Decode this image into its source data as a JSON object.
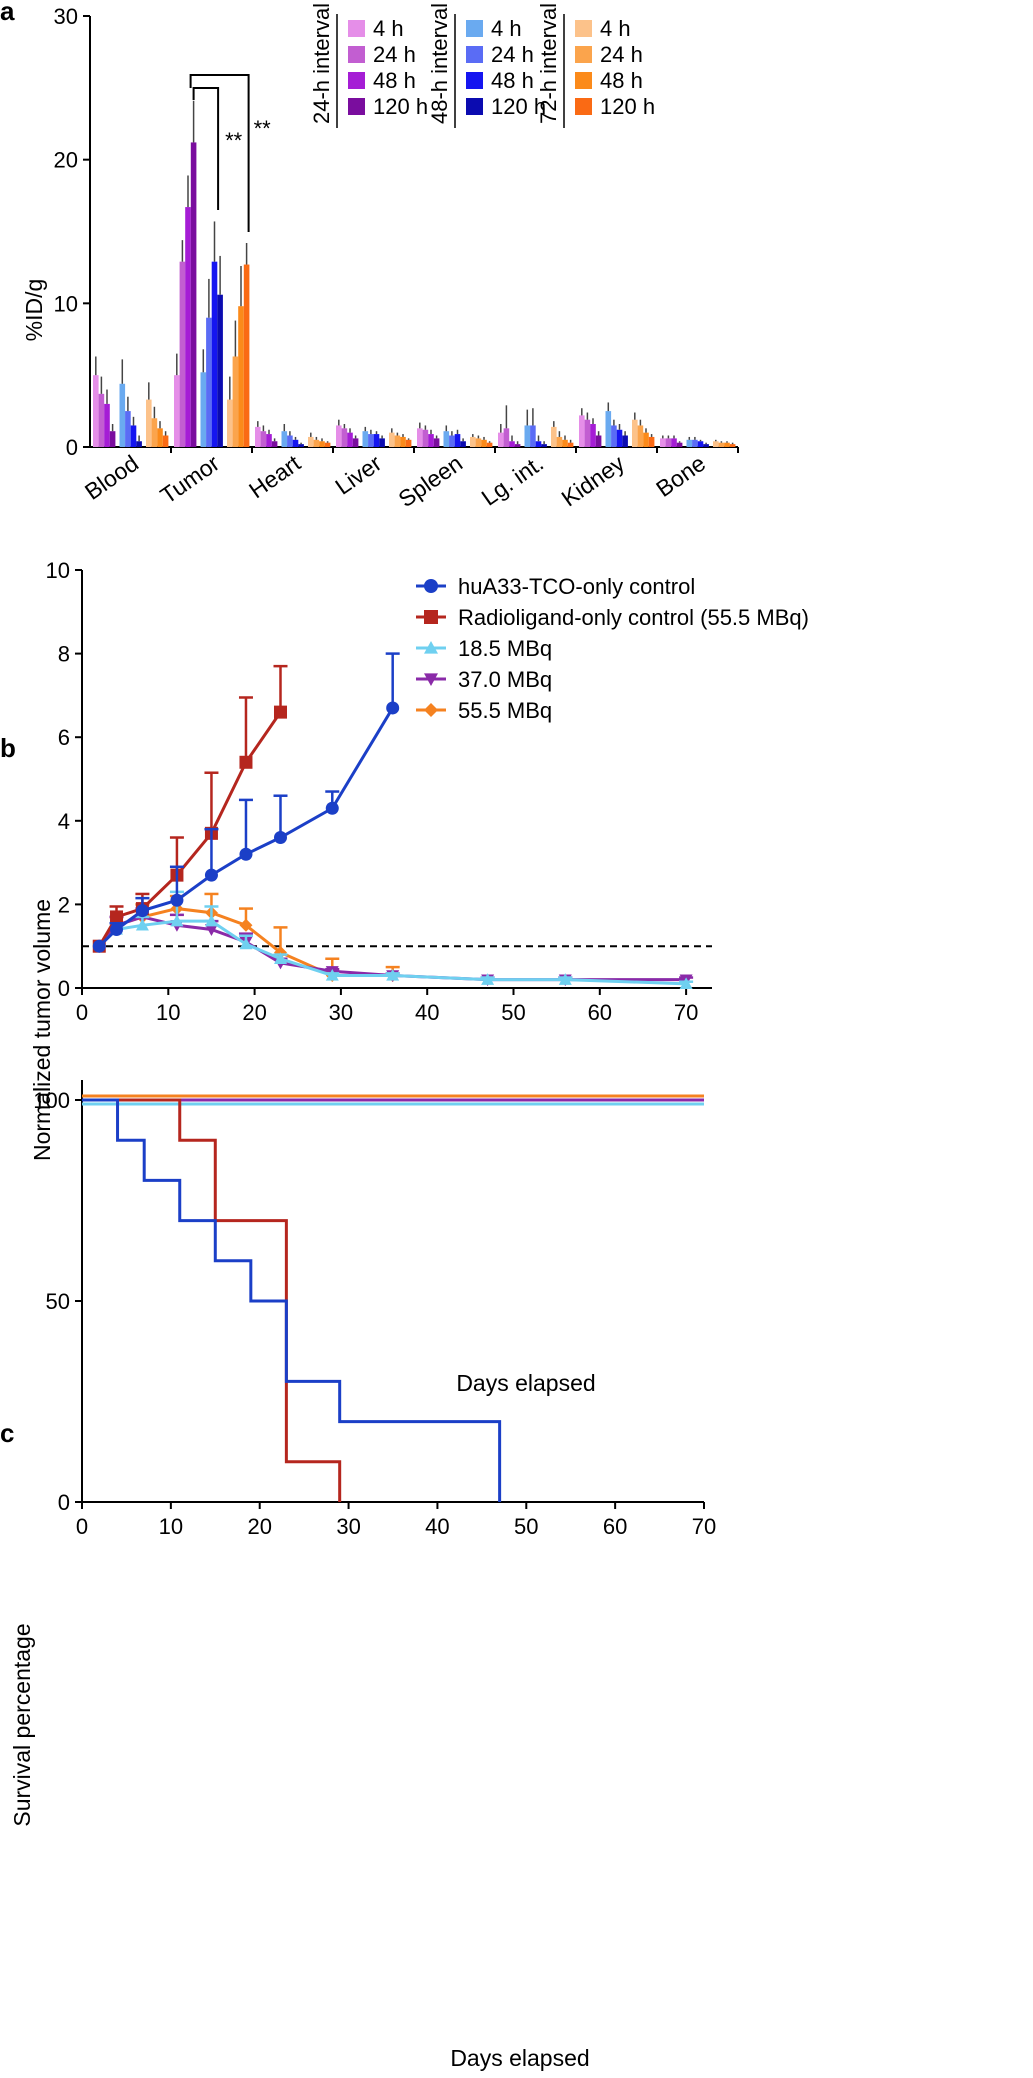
{
  "chart_data": [
    {
      "panel": "a",
      "type": "bar",
      "ylabel": "%ID/g",
      "ylim": [
        0,
        30
      ],
      "yticks": [
        0,
        10,
        20,
        30
      ],
      "categories": [
        "Blood",
        "Tumor",
        "Heart",
        "Liver",
        "Spleen",
        "Lg. int.",
        "Kidney",
        "Bone"
      ],
      "groups": [
        {
          "name": "24-h interval",
          "timepoints": [
            "4 h",
            "24 h",
            "48 h",
            "120 h"
          ],
          "colors": [
            "#e58ee8",
            "#c25ed1",
            "#a51dd5",
            "#7a0d9e"
          ]
        },
        {
          "name": "48-h interval",
          "timepoints": [
            "4 h",
            "24 h",
            "48 h",
            "120 h"
          ],
          "colors": [
            "#6aaaf0",
            "#5a6cf5",
            "#1515f0",
            "#0b0bb0"
          ]
        },
        {
          "name": "72-h interval",
          "timepoints": [
            "4 h",
            "24 h",
            "48 h",
            "120 h"
          ],
          "colors": [
            "#fcc28a",
            "#fba44c",
            "#fb8a1a",
            "#fa6a14"
          ]
        }
      ],
      "values": [
        [
          5.0,
          3.7,
          3.0,
          1.1,
          4.4,
          2.5,
          1.5,
          0.4,
          3.3,
          2.0,
          1.3,
          0.8
        ],
        [
          5.0,
          12.9,
          16.7,
          21.2,
          5.2,
          9.0,
          12.9,
          10.6,
          3.3,
          6.3,
          9.8,
          12.7
        ],
        [
          1.4,
          1.1,
          0.9,
          0.4,
          1.1,
          0.8,
          0.5,
          0.2,
          0.7,
          0.5,
          0.4,
          0.3
        ],
        [
          1.5,
          1.3,
          1.0,
          0.6,
          1.1,
          0.9,
          0.9,
          0.6,
          1.0,
          0.8,
          0.7,
          0.5
        ],
        [
          1.3,
          1.2,
          0.9,
          0.6,
          1.1,
          0.8,
          0.9,
          0.4,
          0.7,
          0.6,
          0.5,
          0.3
        ],
        [
          1.0,
          1.3,
          0.4,
          0.2,
          1.5,
          1.5,
          0.4,
          0.2,
          1.4,
          0.7,
          0.5,
          0.3
        ],
        [
          2.2,
          1.9,
          1.6,
          0.8,
          2.5,
          1.5,
          1.2,
          0.8,
          1.9,
          1.5,
          1.0,
          0.7
        ],
        [
          0.6,
          0.6,
          0.6,
          0.3,
          0.5,
          0.5,
          0.4,
          0.2,
          0.4,
          0.3,
          0.3,
          0.2
        ]
      ],
      "errors": [
        [
          1.3,
          1.2,
          1.0,
          0.5,
          1.7,
          1.0,
          0.6,
          0.4,
          1.2,
          0.8,
          0.5,
          0.3
        ],
        [
          1.5,
          1.5,
          2.2,
          2.9,
          1.6,
          2.7,
          2.8,
          2.7,
          1.6,
          2.5,
          2.8,
          1.5
        ],
        [
          0.4,
          0.4,
          0.3,
          0.2,
          0.5,
          0.3,
          0.2,
          0.1,
          0.3,
          0.2,
          0.2,
          0.1
        ],
        [
          0.4,
          0.3,
          0.3,
          0.2,
          0.3,
          0.3,
          0.2,
          0.2,
          0.3,
          0.2,
          0.2,
          0.1
        ],
        [
          0.4,
          0.3,
          0.3,
          0.2,
          0.4,
          0.3,
          0.3,
          0.2,
          0.2,
          0.2,
          0.2,
          0.1
        ],
        [
          0.6,
          1.6,
          0.4,
          0.2,
          1.1,
          1.2,
          0.4,
          0.2,
          0.4,
          0.4,
          0.3,
          0.2
        ],
        [
          0.5,
          0.5,
          0.4,
          0.3,
          0.6,
          0.4,
          0.4,
          0.3,
          0.5,
          0.4,
          0.3,
          0.2
        ],
        [
          0.2,
          0.2,
          0.2,
          0.1,
          0.2,
          0.2,
          0.1,
          0.1,
          0.1,
          0.1,
          0.1,
          0.1
        ]
      ],
      "significance": [
        "**",
        "**"
      ]
    },
    {
      "panel": "b",
      "type": "line",
      "xlabel": "Days elapsed",
      "ylabel": "Normalized tumor volume",
      "xlim": [
        0,
        73
      ],
      "ylim": [
        0,
        10
      ],
      "xticks": [
        0,
        10,
        20,
        30,
        40,
        50,
        60,
        70
      ],
      "yticks": [
        0,
        2,
        4,
        6,
        8,
        10
      ],
      "reference_line": 1,
      "series": [
        {
          "name": "huA33-TCO-only control",
          "color": "#1b3fc7",
          "marker": "circle",
          "x": [
            2,
            4,
            7,
            11,
            15,
            19,
            23,
            29,
            36
          ],
          "y": [
            1,
            1.4,
            1.85,
            2.1,
            2.7,
            3.2,
            3.6,
            4.3,
            6.7
          ],
          "err": [
            0,
            0.15,
            0.3,
            0.8,
            1.1,
            1.3,
            1.0,
            0.4,
            1.3
          ]
        },
        {
          "name": "Radioligand-only control (55.5 MBq)",
          "color": "#b5261e",
          "marker": "square",
          "x": [
            2,
            4,
            7,
            11,
            15,
            19,
            23
          ],
          "y": [
            1,
            1.7,
            1.9,
            2.7,
            3.7,
            5.4,
            6.6
          ],
          "err": [
            0,
            0.25,
            0.35,
            0.9,
            1.45,
            1.55,
            1.1
          ]
        },
        {
          "name": "18.5 MBq",
          "color": "#6fd0f0",
          "marker": "triangle-up",
          "x": [
            2,
            4,
            7,
            11,
            15,
            19,
            23,
            29,
            36,
            47,
            56,
            70
          ],
          "y": [
            1,
            1.4,
            1.5,
            1.6,
            1.6,
            1.05,
            0.7,
            0.3,
            0.3,
            0.2,
            0.2,
            0.1
          ],
          "err": [
            0,
            0.15,
            0.2,
            0.7,
            0.35,
            0.2,
            0.1,
            0.05,
            0.05,
            0.05,
            0.05,
            0.05
          ]
        },
        {
          "name": "37.0 MBq",
          "color": "#8a2aa8",
          "marker": "triangle-down",
          "x": [
            2,
            4,
            7,
            11,
            15,
            19,
            23,
            29,
            36,
            47,
            56,
            70
          ],
          "y": [
            1,
            1.5,
            1.7,
            1.5,
            1.4,
            1.1,
            0.6,
            0.4,
            0.3,
            0.2,
            0.2,
            0.2
          ],
          "err": [
            0,
            0.2,
            0.2,
            0.25,
            0.2,
            0.2,
            0.1,
            0.05,
            0.05,
            0.05,
            0.05,
            0.05
          ]
        },
        {
          "name": "55.5 MBq",
          "color": "#f58220",
          "marker": "diamond",
          "x": [
            2,
            4,
            7,
            11,
            15,
            19,
            23,
            29,
            36
          ],
          "y": [
            1,
            1.5,
            1.7,
            1.9,
            1.8,
            1.5,
            0.85,
            0.3,
            0.3
          ],
          "err": [
            0,
            0.2,
            0.3,
            0.3,
            0.45,
            0.4,
            0.6,
            0.4,
            0.2
          ]
        }
      ]
    },
    {
      "panel": "c",
      "type": "line",
      "subtype": "step",
      "xlabel": "Days elapsed",
      "ylabel": "Survival percentage",
      "xlim": [
        0,
        70
      ],
      "ylim": [
        0,
        100
      ],
      "xticks": [
        0,
        10,
        20,
        30,
        40,
        50,
        60,
        70
      ],
      "yticks": [
        0,
        50,
        100
      ],
      "series": [
        {
          "name": "huA33-TCO-only control",
          "color": "#1b3fc7",
          "x": [
            0,
            4,
            7,
            11,
            15,
            19,
            23,
            29,
            47
          ],
          "y": [
            100,
            90,
            80,
            70,
            60,
            50,
            30,
            20,
            0
          ]
        },
        {
          "name": "Radioligand-only control (55.5 MBq)",
          "color": "#b5261e",
          "x": [
            0,
            11,
            15,
            23,
            29
          ],
          "y": [
            100,
            90,
            70,
            10,
            0
          ]
        },
        {
          "name": "18.5 MBq",
          "color": "#6fd0f0",
          "x": [
            0,
            70
          ],
          "y": [
            99,
            99
          ]
        },
        {
          "name": "37.0 MBq",
          "color": "#8a2aa8",
          "x": [
            0,
            70
          ],
          "y": [
            100,
            100
          ]
        },
        {
          "name": "55.5 MBq",
          "color": "#f58220",
          "x": [
            0,
            70
          ],
          "y": [
            101,
            101
          ]
        }
      ]
    }
  ]
}
